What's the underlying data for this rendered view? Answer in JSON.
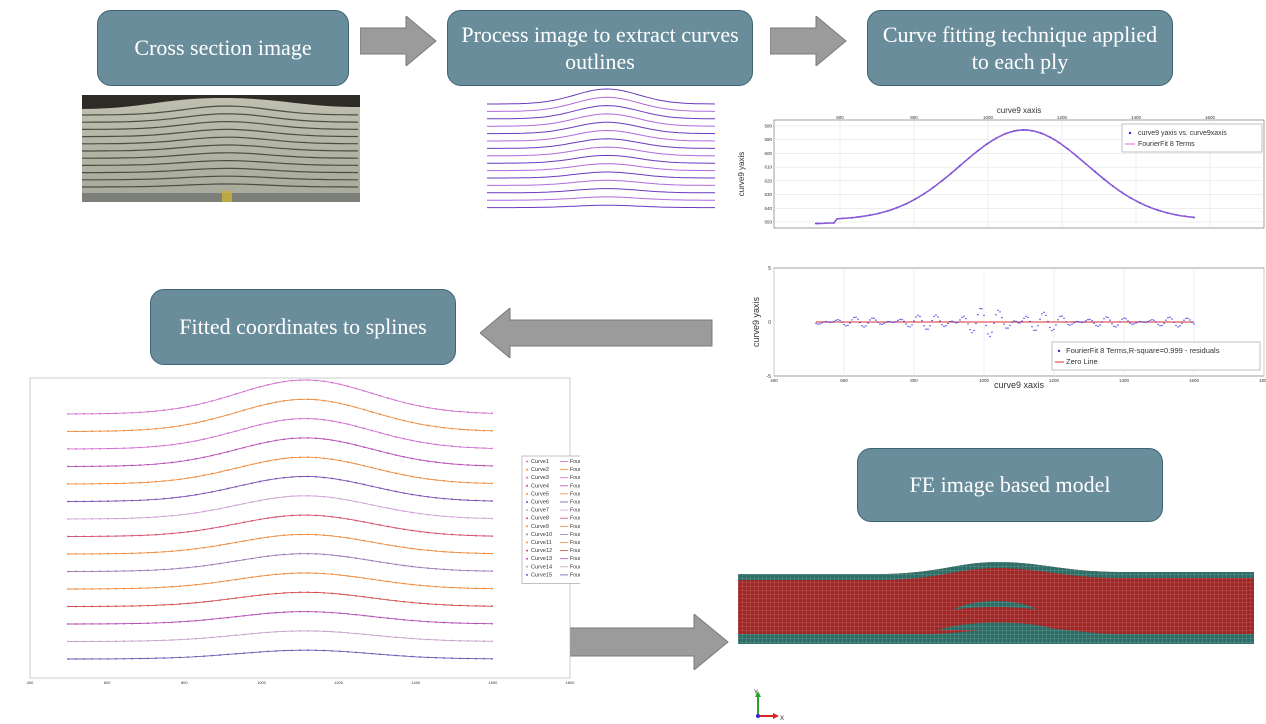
{
  "steps": {
    "cross_section": "Cross section image",
    "process": "Process image to extract curves outlines",
    "curve_fitting": "Curve fitting technique applied to each ply",
    "fitted": "Fitted coordinates to splines",
    "fe_model": "FE image based model"
  },
  "colors": {
    "box_fill": "#6a8d9c",
    "arrow_fill": "#9b9b9b",
    "data_blue": "#2b2bd9",
    "fit_pink": "#e06ad0",
    "fe_red": "#9e2828",
    "fe_green": "#2e6d66"
  },
  "chart_data": [
    {
      "type": "line",
      "title": "curve9 xaxis",
      "ylabel": "curve9 yaxis",
      "x_ticks": [
        "600",
        "800",
        "1000",
        "1200",
        "1400",
        "1600"
      ],
      "y_ticks": [
        "580",
        "590",
        "600",
        "610",
        "620",
        "630",
        "640",
        "650"
      ],
      "legend": [
        "curve9 yaxis vs. curve9xaxis",
        "FourierFit 8 Terms"
      ],
      "legend_position": "top-right"
    },
    {
      "type": "scatter",
      "xlabel": "curve9 xaxis",
      "ylabel": "curve9 yaxis",
      "x_ticks": [
        "400",
        "600",
        "800",
        "1000",
        "1200",
        "1400",
        "1600",
        "1800"
      ],
      "y_ticks": [
        "5",
        "0",
        "-5"
      ],
      "legend": [
        "FourierFit 8 Terms,R-square=0.999 - residuals",
        "Zero Line"
      ],
      "legend_position": "bottom-right"
    },
    {
      "type": "line",
      "x_ticks": [
        "400",
        "600",
        "800",
        "1000",
        "1200",
        "1400",
        "1600",
        "1800"
      ],
      "legend_position": "right",
      "series": [
        {
          "name": "Curve1",
          "fit": "FourierFit 5 Terms,R-square=0.998"
        },
        {
          "name": "Curve2",
          "fit": "FourierFit 5 Terms,R-square=0.999"
        },
        {
          "name": "Curve3",
          "fit": "FourierFit 5 Terms,R-square=0.999"
        },
        {
          "name": "Curve4",
          "fit": "FourierFit 5 Terms,R-square=0.999"
        },
        {
          "name": "Curve5",
          "fit": "FourierFit 5 Terms,R-square=0.999"
        },
        {
          "name": "Curve6",
          "fit": "FourierFit 5 Terms,R-square=0.998"
        },
        {
          "name": "Curve7",
          "fit": "FourierFit 5 Terms,R-square=0.999"
        },
        {
          "name": "Curve8",
          "fit": "FourierFit 5 Terms,R-square=0.999"
        },
        {
          "name": "Curve9",
          "fit": "FourierFit 5 Terms,R-square=0.999"
        },
        {
          "name": "Curve10",
          "fit": "FourierFit 5 Terms,R-square=0.999"
        },
        {
          "name": "Curve11",
          "fit": "FourierFit 5 Terms,R-square=0.999"
        },
        {
          "name": "Curve12",
          "fit": "FourierFit 5 Terms,R-square=0.998"
        },
        {
          "name": "Curve13",
          "fit": "FourierFit 5 Terms,R-square=0.999"
        },
        {
          "name": "Curve14",
          "fit": "FourierFit 5 Terms,R-square=0.972"
        },
        {
          "name": "Curve15",
          "fit": "FourierFit 5 Terms,R-square=0.971"
        }
      ]
    }
  ],
  "axes_triad": {
    "y": "Y",
    "x": "X"
  }
}
